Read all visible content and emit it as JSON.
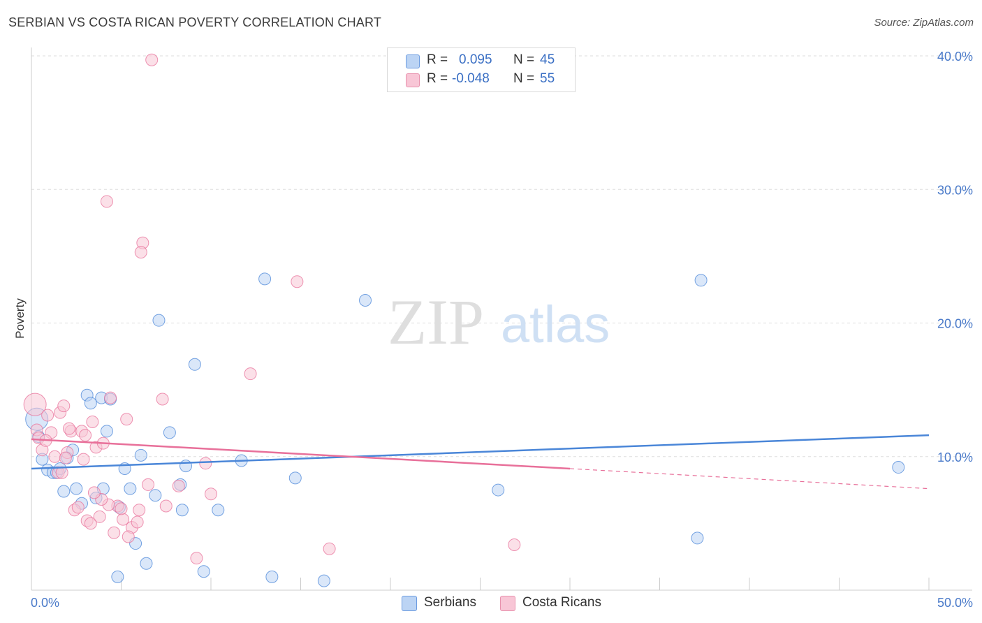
{
  "title": "SERBIAN VS COSTA RICAN POVERTY CORRELATION CHART",
  "source": "Source: ZipAtlas.com",
  "watermark": {
    "zip": "ZIP",
    "atlas": "atlas"
  },
  "legend": {
    "serbians": {
      "r_label": "R =",
      "r_value": "0.095",
      "n_label": "N =",
      "n_value": "45"
    },
    "costa": {
      "r_label": "R =",
      "r_value": "-0.048",
      "n_label": "N =",
      "n_value": "55"
    }
  },
  "chart_data": {
    "type": "scatter",
    "title": "SERBIAN VS COSTA RICAN POVERTY CORRELATION CHART",
    "xlabel": "",
    "ylabel": "Poverty",
    "xlim": [
      0,
      50
    ],
    "ylim": [
      0,
      40
    ],
    "x_tick_labels": [
      "0.0%",
      "50.0%"
    ],
    "y_ticks": [
      10,
      20,
      30,
      40
    ],
    "y_tick_labels": [
      "10.0%",
      "20.0%",
      "30.0%",
      "40.0%"
    ],
    "grid": true,
    "legend_position": "top-center",
    "colors": {
      "serbians": "#4a86d8",
      "costa": "#e8709a",
      "serbians_fill": "#bcd4f4",
      "costa_fill": "#f8c6d6",
      "axis_text": "#4a7ac9"
    },
    "series": [
      {
        "name": "Serbians",
        "color": "#4a86d8",
        "points": [
          [
            0.3,
            12.8
          ],
          [
            0.4,
            11.5
          ],
          [
            0.6,
            9.8
          ],
          [
            0.9,
            9.0
          ],
          [
            1.2,
            8.8
          ],
          [
            1.4,
            8.8
          ],
          [
            1.6,
            9.1
          ],
          [
            1.8,
            7.4
          ],
          [
            2.0,
            9.9
          ],
          [
            2.3,
            10.5
          ],
          [
            2.5,
            7.6
          ],
          [
            2.8,
            6.5
          ],
          [
            3.1,
            14.6
          ],
          [
            3.3,
            14.0
          ],
          [
            3.6,
            6.9
          ],
          [
            3.9,
            14.4
          ],
          [
            4.0,
            7.6
          ],
          [
            4.2,
            11.9
          ],
          [
            4.4,
            14.3
          ],
          [
            4.9,
            6.2
          ],
          [
            5.2,
            9.1
          ],
          [
            5.5,
            7.6
          ],
          [
            5.8,
            3.5
          ],
          [
            6.1,
            10.1
          ],
          [
            6.4,
            2.0
          ],
          [
            6.9,
            7.1
          ],
          [
            7.1,
            20.2
          ],
          [
            7.7,
            11.8
          ],
          [
            8.4,
            6.0
          ],
          [
            8.6,
            9.3
          ],
          [
            9.1,
            16.9
          ],
          [
            9.6,
            1.4
          ],
          [
            10.4,
            6.0
          ],
          [
            11.7,
            9.7
          ],
          [
            13.0,
            23.3
          ],
          [
            13.4,
            1.0
          ],
          [
            14.7,
            8.4
          ],
          [
            16.3,
            0.7
          ],
          [
            18.6,
            21.7
          ],
          [
            26.0,
            7.5
          ],
          [
            37.1,
            3.9
          ],
          [
            37.3,
            23.2
          ],
          [
            48.3,
            9.2
          ],
          [
            4.8,
            1.0
          ],
          [
            8.3,
            7.9
          ]
        ]
      },
      {
        "name": "Costa Ricans",
        "color": "#e8709a",
        "points": [
          [
            0.2,
            13.9
          ],
          [
            0.3,
            12.0
          ],
          [
            0.4,
            11.4
          ],
          [
            0.6,
            10.5
          ],
          [
            0.9,
            13.1
          ],
          [
            1.1,
            11.8
          ],
          [
            1.3,
            10.0
          ],
          [
            1.5,
            8.8
          ],
          [
            1.6,
            13.3
          ],
          [
            1.8,
            13.8
          ],
          [
            2.0,
            10.3
          ],
          [
            2.2,
            11.9
          ],
          [
            2.4,
            6.0
          ],
          [
            2.6,
            6.2
          ],
          [
            2.8,
            11.9
          ],
          [
            3.0,
            11.6
          ],
          [
            3.1,
            5.2
          ],
          [
            3.3,
            5.0
          ],
          [
            3.4,
            12.6
          ],
          [
            3.6,
            10.7
          ],
          [
            3.8,
            5.5
          ],
          [
            4.0,
            11.0
          ],
          [
            4.2,
            29.1
          ],
          [
            4.4,
            14.4
          ],
          [
            4.6,
            4.3
          ],
          [
            4.8,
            6.3
          ],
          [
            5.1,
            5.3
          ],
          [
            5.3,
            12.8
          ],
          [
            5.6,
            4.7
          ],
          [
            5.9,
            5.1
          ],
          [
            6.2,
            26.0
          ],
          [
            6.1,
            25.3
          ],
          [
            6.5,
            7.9
          ],
          [
            6.7,
            39.7
          ],
          [
            7.3,
            14.3
          ],
          [
            7.5,
            6.3
          ],
          [
            8.2,
            7.8
          ],
          [
            9.2,
            2.4
          ],
          [
            9.7,
            9.5
          ],
          [
            10.0,
            7.2
          ],
          [
            12.2,
            16.2
          ],
          [
            14.8,
            23.1
          ],
          [
            16.6,
            3.1
          ],
          [
            26.9,
            3.4
          ],
          [
            1.9,
            9.9
          ],
          [
            2.9,
            9.8
          ],
          [
            4.3,
            6.4
          ],
          [
            5.0,
            6.1
          ],
          [
            3.9,
            6.8
          ],
          [
            3.5,
            7.3
          ],
          [
            5.4,
            4.0
          ],
          [
            6.0,
            6.0
          ],
          [
            1.7,
            8.8
          ],
          [
            0.8,
            11.2
          ],
          [
            2.1,
            12.1
          ]
        ]
      }
    ],
    "trend_lines": [
      {
        "name": "Serbians",
        "from": [
          0,
          9.1
        ],
        "to": [
          50,
          11.6
        ],
        "style": "solid"
      },
      {
        "name": "Costa Ricans",
        "from": [
          0,
          11.3
        ],
        "to": [
          30,
          9.1
        ],
        "style": "solid"
      },
      {
        "name": "Costa Ricans",
        "from": [
          30,
          9.1
        ],
        "to": [
          50,
          7.6
        ],
        "style": "dashed"
      }
    ]
  },
  "bottom_legend": {
    "serbians": "Serbians",
    "costa": "Costa Ricans"
  }
}
